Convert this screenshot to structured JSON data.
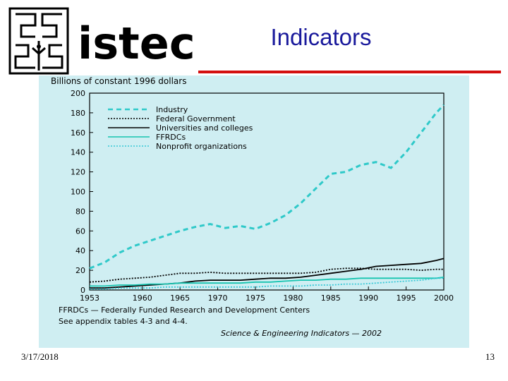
{
  "slide": {
    "title": "Indicators",
    "date": "3/17/2018",
    "page_number": "13"
  },
  "logo": {
    "text": "istec",
    "icon": "maze-mask-icon"
  },
  "colors": {
    "title": "#1a1a9c",
    "rule": "#d40f0f",
    "panel": "#cfeef2",
    "industry": "#2fc9c9",
    "ffrdc": "#17c4b0",
    "nonprofit": "#37c8d6"
  },
  "chart_data": {
    "type": "line",
    "ylabel": "Billions of constant 1996 dollars",
    "ylim": [
      0,
      200
    ],
    "yticks": [
      "0",
      "20",
      "40",
      "60",
      "80",
      "100",
      "120",
      "140",
      "160",
      "180",
      "200"
    ],
    "xlim": [
      1953,
      2000
    ],
    "xticks": [
      "1953",
      "1960",
      "1965",
      "1970",
      "1975",
      "1980",
      "1985",
      "1990",
      "1995",
      "2000"
    ],
    "grid": false,
    "legend": "top-left",
    "x": [
      1953,
      1955,
      1957,
      1959,
      1961,
      1963,
      1965,
      1967,
      1969,
      1971,
      1973,
      1975,
      1977,
      1979,
      1981,
      1983,
      1985,
      1987,
      1989,
      1991,
      1993,
      1995,
      1997,
      1999,
      2000
    ],
    "series": [
      {
        "name": "Industry",
        "style": "dashed",
        "color": "#2fc9c9",
        "values": [
          22,
          28,
          38,
          45,
          50,
          55,
          60,
          64,
          67,
          63,
          65,
          62,
          68,
          76,
          88,
          103,
          118,
          120,
          127,
          130,
          124,
          140,
          160,
          180,
          188
        ]
      },
      {
        "name": "Federal Government",
        "style": "dotted",
        "color": "#000000",
        "values": [
          8,
          9,
          11,
          12,
          13,
          15,
          17,
          17,
          18,
          17,
          17,
          17,
          17,
          17,
          17,
          18,
          21,
          22,
          22,
          21,
          21,
          21,
          20,
          21,
          21
        ]
      },
      {
        "name": "Universities and colleges",
        "style": "solid",
        "color": "#000000",
        "values": [
          2,
          2,
          3,
          4,
          5,
          6,
          7,
          9,
          10,
          10,
          10,
          11,
          12,
          12,
          13,
          15,
          17,
          19,
          21,
          24,
          25,
          26,
          27,
          30,
          32
        ]
      },
      {
        "name": "FFRDCs",
        "style": "solid",
        "color": "#17c4b0",
        "values": [
          4,
          4,
          5,
          5,
          6,
          6,
          7,
          7,
          7,
          7,
          7,
          8,
          8,
          9,
          10,
          10,
          11,
          11,
          12,
          12,
          12,
          12,
          12,
          12,
          13
        ]
      },
      {
        "name": "Nonprofit organizations",
        "style": "dotted",
        "color": "#37c8d6",
        "values": [
          1,
          1,
          2,
          2,
          2,
          3,
          3,
          3,
          3,
          3,
          3,
          3,
          4,
          4,
          4,
          5,
          5,
          6,
          6,
          7,
          8,
          9,
          10,
          12,
          12
        ]
      }
    ],
    "notes": [
      "FFRDCs — Federally Funded Research and Development Centers",
      "See appendix tables 4-3 and 4-4.",
      "Science & Engineering Indicators — 2002"
    ]
  }
}
